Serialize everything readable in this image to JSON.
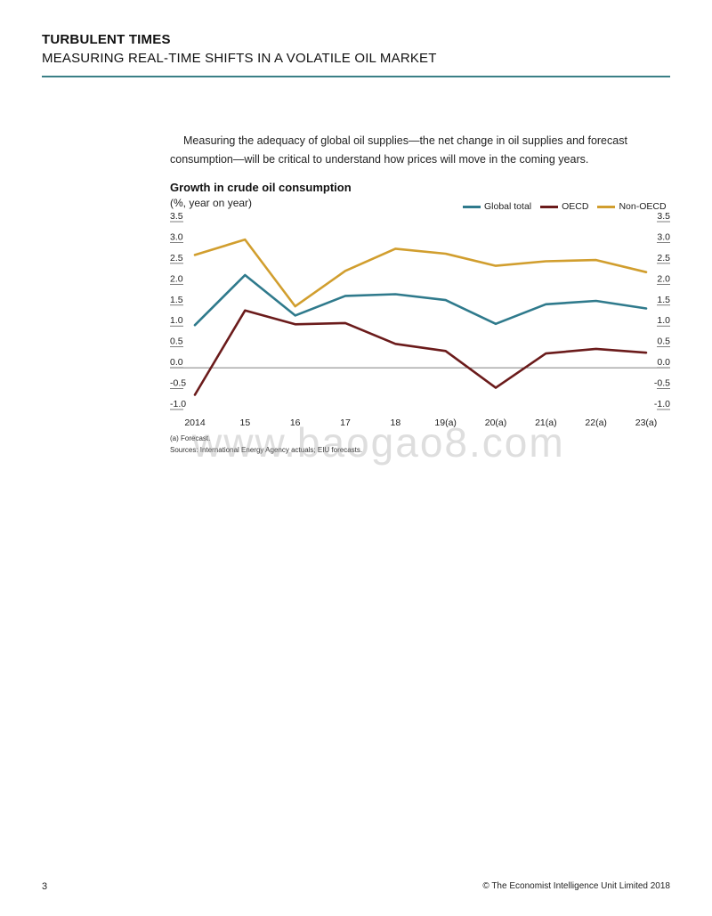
{
  "header": {
    "title": "TURBULENT TIMES",
    "subtitle": "MEASURING REAL-TIME SHIFTS IN A VOLATILE OIL MARKET"
  },
  "intro_text": "Measuring the adequacy of global oil supplies—the net change in oil supplies and forecast consumption—will be critical to understand how prices will move in the coming years.",
  "chart_data": {
    "type": "line",
    "title": "Growth in crude oil consumption",
    "subtitle": "(%, year on year)",
    "categories": [
      "2014",
      "15",
      "16",
      "17",
      "18",
      "19(a)",
      "20(a)",
      "21(a)",
      "22(a)",
      "23(a)"
    ],
    "yticks": [
      "3.5",
      "3.0",
      "2.5",
      "2.0",
      "1.5",
      "1.0",
      "0.5",
      "0.0",
      "-0.5",
      "-1.0"
    ],
    "ylim": [
      -1.0,
      3.5
    ],
    "legend_position": "top-right",
    "series": [
      {
        "name": "Global total",
        "color": "#2f7a8c",
        "values": [
          1.0,
          2.2,
          1.23,
          1.7,
          1.74,
          1.6,
          1.03,
          1.5,
          1.58,
          1.4
        ]
      },
      {
        "name": "OECD",
        "color": "#6b1b1b",
        "values": [
          -0.67,
          1.35,
          1.02,
          1.05,
          0.55,
          0.38,
          -0.5,
          0.32,
          0.43,
          0.34
        ]
      },
      {
        "name": "Non-OECD",
        "color": "#d19e2e",
        "values": [
          2.68,
          3.05,
          1.45,
          2.3,
          2.83,
          2.71,
          2.42,
          2.53,
          2.56,
          2.27
        ]
      }
    ]
  },
  "footnotes": {
    "forecast": "(a) Forecast.",
    "sources": "Sources: International Energy Agency actuals; EIU forecasts."
  },
  "watermark": "www.baogao8.com",
  "footer": {
    "page_number": "3",
    "copyright": "© The Economist Intelligence Unit Limited 2018"
  }
}
